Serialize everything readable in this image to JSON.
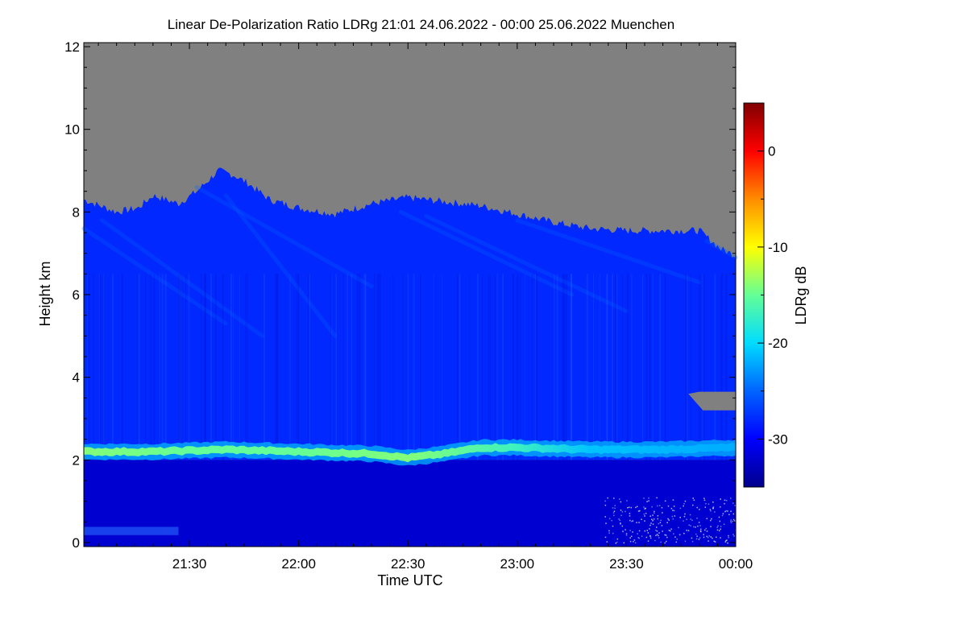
{
  "chart_data": {
    "type": "heatmap",
    "title": "Linear De-Polarization Ratio LDRg   21:01 24.06.2022 - 00:00 25.06.2022 Muenchen",
    "xlabel": "Time UTC",
    "ylabel": "Height km",
    "x_range_minutes": [
      1261,
      1440
    ],
    "x_ticks": [
      {
        "label": "21:30",
        "minutes": 1290
      },
      {
        "label": "22:00",
        "minutes": 1320
      },
      {
        "label": "22:30",
        "minutes": 1350
      },
      {
        "label": "23:00",
        "minutes": 1380
      },
      {
        "label": "23:30",
        "minutes": 1410
      },
      {
        "label": "00:00",
        "minutes": 1440
      }
    ],
    "ylim": [
      0,
      12
    ],
    "y_ticks": [
      {
        "label": "0",
        "value": 0
      },
      {
        "label": "2",
        "value": 2
      },
      {
        "label": "4",
        "value": 4
      },
      {
        "label": "6",
        "value": 6
      },
      {
        "label": "8",
        "value": 8
      },
      {
        "label": "10",
        "value": 10
      },
      {
        "label": "12",
        "value": 12
      }
    ],
    "colorbar": {
      "label": "LDRg dB",
      "range": [
        -35,
        5
      ],
      "ticks": [
        {
          "label": "0",
          "value": 0
        },
        {
          "label": "-10",
          "value": -10
        },
        {
          "label": "-20",
          "value": -20
        },
        {
          "label": "-30",
          "value": -30
        }
      ],
      "colormap": [
        "#00008c",
        "#0000ff",
        "#0064ff",
        "#00dcff",
        "#64ff96",
        "#ffff00",
        "#ff8c00",
        "#ff0000",
        "#800000"
      ]
    },
    "no_signal_color": "#808080",
    "signal_top_km": [
      {
        "minutes": 1261,
        "km": 8.3
      },
      {
        "minutes": 1270,
        "km": 8.0
      },
      {
        "minutes": 1276,
        "km": 8.1
      },
      {
        "minutes": 1280,
        "km": 8.4
      },
      {
        "minutes": 1287,
        "km": 8.2
      },
      {
        "minutes": 1292,
        "km": 8.5
      },
      {
        "minutes": 1298,
        "km": 9.0
      },
      {
        "minutes": 1302,
        "km": 8.9
      },
      {
        "minutes": 1306,
        "km": 8.7
      },
      {
        "minutes": 1312,
        "km": 8.3
      },
      {
        "minutes": 1320,
        "km": 8.1
      },
      {
        "minutes": 1330,
        "km": 7.95
      },
      {
        "minutes": 1340,
        "km": 8.2
      },
      {
        "minutes": 1350,
        "km": 8.35
      },
      {
        "minutes": 1360,
        "km": 8.25
      },
      {
        "minutes": 1370,
        "km": 8.15
      },
      {
        "minutes": 1380,
        "km": 7.95
      },
      {
        "minutes": 1390,
        "km": 7.75
      },
      {
        "minutes": 1400,
        "km": 7.6
      },
      {
        "minutes": 1410,
        "km": 7.55
      },
      {
        "minutes": 1420,
        "km": 7.55
      },
      {
        "minutes": 1430,
        "km": 7.55
      },
      {
        "minutes": 1436,
        "km": 7.1
      },
      {
        "minutes": 1440,
        "km": 6.95
      }
    ],
    "aerosol_layer_center_km": [
      {
        "minutes": 1261,
        "km": 2.2
      },
      {
        "minutes": 1280,
        "km": 2.2
      },
      {
        "minutes": 1300,
        "km": 2.25
      },
      {
        "minutes": 1320,
        "km": 2.2
      },
      {
        "minutes": 1340,
        "km": 2.15
      },
      {
        "minutes": 1350,
        "km": 2.05
      },
      {
        "minutes": 1360,
        "km": 2.15
      },
      {
        "minutes": 1370,
        "km": 2.3
      },
      {
        "minutes": 1380,
        "km": 2.3
      },
      {
        "minutes": 1400,
        "km": 2.25
      },
      {
        "minutes": 1420,
        "km": 2.25
      },
      {
        "minutes": 1440,
        "km": 2.3
      }
    ],
    "aerosol_layer_ldr_db": [
      {
        "minutes": 1261,
        "db": -14
      },
      {
        "minutes": 1290,
        "db": -15
      },
      {
        "minutes": 1320,
        "db": -15
      },
      {
        "minutes": 1350,
        "db": -14
      },
      {
        "minutes": 1380,
        "db": -17
      },
      {
        "minutes": 1400,
        "db": -21
      },
      {
        "minutes": 1440,
        "db": -22
      }
    ],
    "background_ldr_db": {
      "lower_troposphere": -32,
      "free_troposphere": -28,
      "cirrus_edge": -25
    },
    "gap_region": {
      "minutes": [
        1427,
        1440
      ],
      "km": [
        3.2,
        3.65
      ]
    }
  }
}
